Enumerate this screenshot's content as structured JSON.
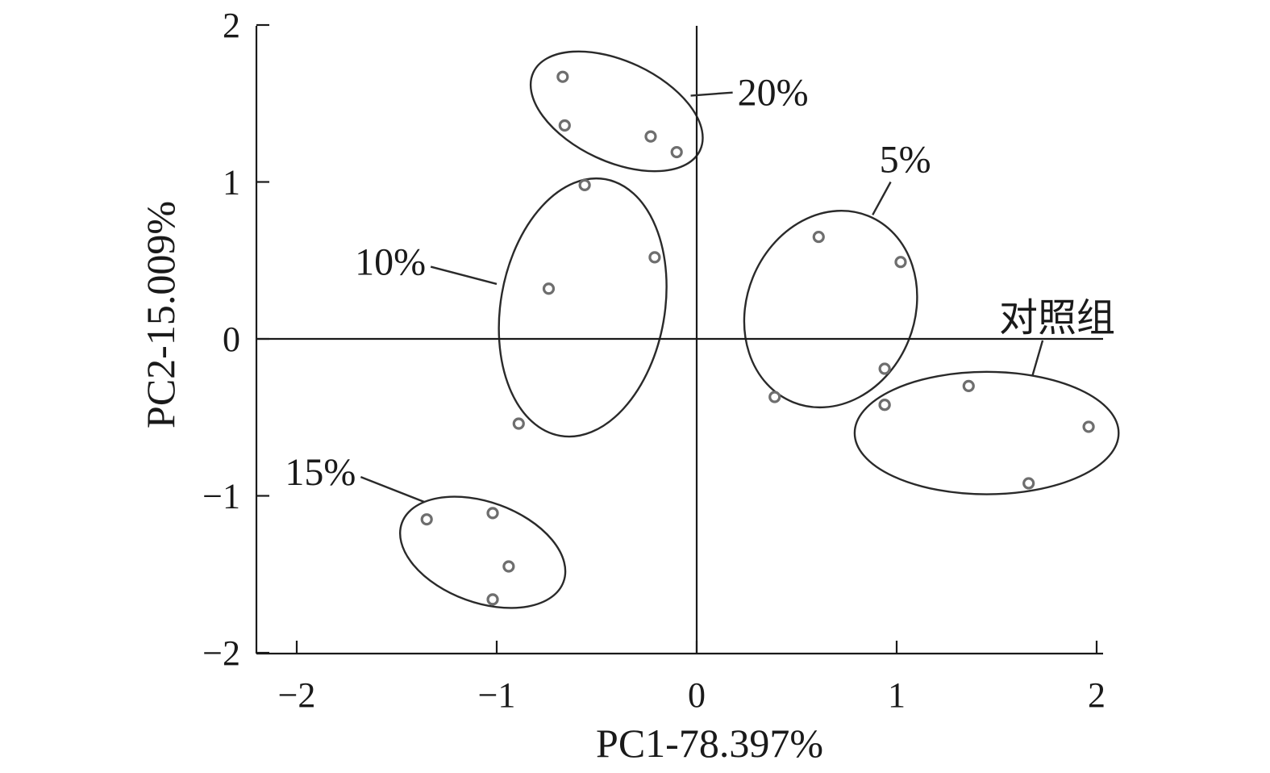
{
  "chart_data": {
    "type": "scatter",
    "title": "",
    "xlabel": "PC1-78.397%",
    "ylabel": "PC2-15.009%",
    "xlim": [
      -2.22,
      2.0
    ],
    "ylim": [
      -2.0,
      2.0
    ],
    "xticks": [
      -2,
      -1,
      0,
      1,
      2
    ],
    "yticks": [
      -2,
      -1,
      0,
      1,
      2
    ],
    "xtick_labels": [
      "−2",
      "−1",
      "0",
      "1",
      "2"
    ],
    "ytick_labels": [
      "−2",
      "−1",
      "0",
      "1",
      "2"
    ],
    "reference_lines": {
      "x": 0,
      "y": 0
    },
    "grid": false,
    "legend": "none",
    "point_marker": "open-circle",
    "series": [
      {
        "name": "20%",
        "points": [
          [
            -0.67,
            1.67
          ],
          [
            -0.66,
            1.36
          ],
          [
            -0.23,
            1.29
          ],
          [
            -0.1,
            1.19
          ]
        ],
        "ellipse": {
          "cx": -0.4,
          "cy": 1.45,
          "rx": 0.46,
          "ry": 0.32,
          "angle": 25
        },
        "label_anchor": [
          0.18,
          1.57
        ],
        "leader_end": [
          -0.03,
          1.55
        ]
      },
      {
        "name": "10%",
        "points": [
          [
            -0.56,
            0.98
          ],
          [
            -0.21,
            0.52
          ],
          [
            -0.74,
            0.32
          ],
          [
            -0.89,
            -0.54
          ]
        ],
        "ellipse": {
          "cx": -0.57,
          "cy": 0.2,
          "rx": 0.41,
          "ry": 0.83,
          "angle": 10
        },
        "label_anchor": [
          -1.33,
          0.46
        ],
        "leader_end": [
          -1.0,
          0.35
        ]
      },
      {
        "name": "5%",
        "points": [
          [
            0.61,
            0.65
          ],
          [
            1.02,
            0.49
          ],
          [
            0.94,
            -0.19
          ],
          [
            0.39,
            -0.37
          ],
          [
            0.94,
            -0.42
          ]
        ],
        "ellipse": {
          "cx": 0.67,
          "cy": 0.19,
          "rx": 0.42,
          "ry": 0.64,
          "angle": 22
        },
        "label_anchor": [
          0.97,
          1.0
        ],
        "leader_end": [
          0.88,
          0.79
        ]
      },
      {
        "name": "15%",
        "points": [
          [
            -1.35,
            -1.15
          ],
          [
            -1.02,
            -1.11
          ],
          [
            -0.94,
            -1.45
          ],
          [
            -1.02,
            -1.66
          ]
        ],
        "ellipse": {
          "cx": -1.07,
          "cy": -1.36,
          "rx": 0.43,
          "ry": 0.32,
          "angle": 20
        },
        "label_anchor": [
          -1.68,
          -0.88
        ],
        "leader_end": [
          -1.36,
          -1.04
        ]
      },
      {
        "name": "对照组",
        "points": [
          [
            1.36,
            -0.3
          ],
          [
            1.96,
            -0.56
          ],
          [
            1.66,
            -0.92
          ],
          [
            0.94,
            -0.42
          ]
        ],
        "ellipse": {
          "cx": 1.45,
          "cy": -0.6,
          "rx": 0.66,
          "ry": 0.39,
          "angle": 0
        },
        "label_anchor": [
          1.73,
          -0.01
        ],
        "leader_end": [
          1.68,
          -0.23
        ]
      }
    ]
  }
}
